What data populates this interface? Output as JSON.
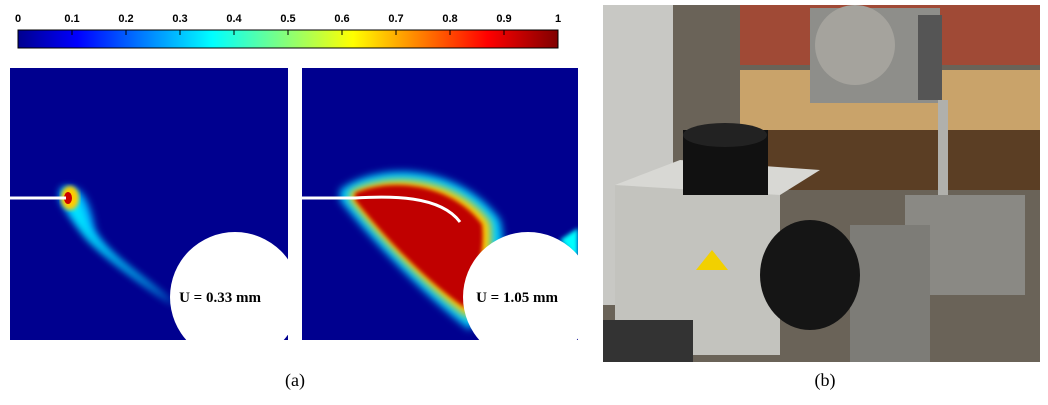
{
  "colorbar": {
    "ticks": [
      0,
      0.1,
      0.2,
      0.3,
      0.4,
      0.5,
      0.6,
      0.7,
      0.8,
      0.9,
      1
    ]
  },
  "panels": [
    {
      "label": "U = 0.33 mm"
    },
    {
      "label": "U = 1.05 mm"
    }
  ],
  "captions": [
    "(a)",
    "(b)"
  ]
}
